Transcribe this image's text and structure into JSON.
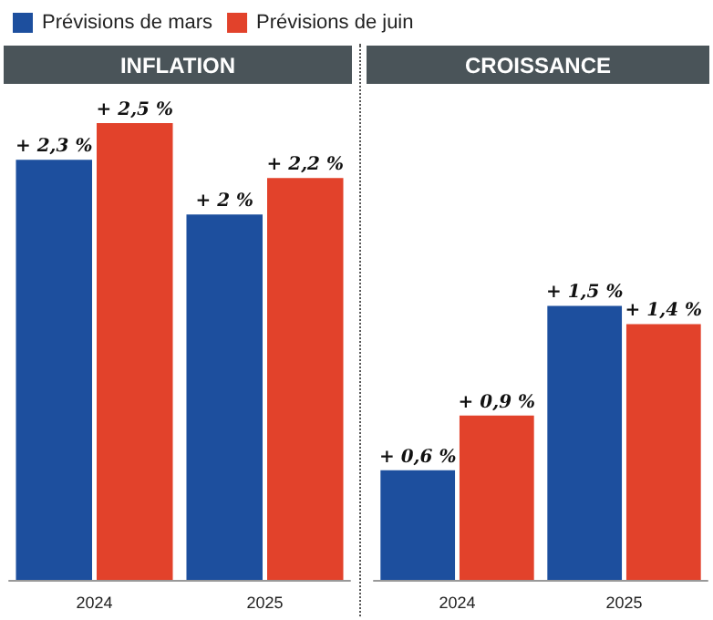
{
  "chart_data": [
    {
      "type": "bar",
      "title": "INFLATION",
      "categories": [
        "2024",
        "2025"
      ],
      "legend": "top",
      "series": [
        {
          "name": "Prévisions de mars",
          "color": "#1d4f9e",
          "values": [
            2.3,
            2
          ],
          "value_labels": [
            "+ 2,3 %",
            "+ 2 %"
          ]
        },
        {
          "name": "Prévisions de juin",
          "color": "#e2422b",
          "values": [
            2.5,
            2.2
          ],
          "value_labels": [
            "+ 2,5 %",
            "+ 2,2 %"
          ]
        }
      ]
    },
    {
      "type": "bar",
      "title": "CROISSANCE",
      "categories": [
        "2024",
        "2025"
      ],
      "series": [
        {
          "color": "#1d4f9e",
          "values": [
            0.6,
            1.5
          ],
          "value_labels": [
            "+ 0,6 %",
            "+ 1,5 %"
          ]
        },
        {
          "color": "#e2422b",
          "values": [
            0.9,
            1.4
          ],
          "value_labels": [
            "+ 0,9 %",
            "+ 1,4 %"
          ]
        }
      ]
    }
  ]
}
